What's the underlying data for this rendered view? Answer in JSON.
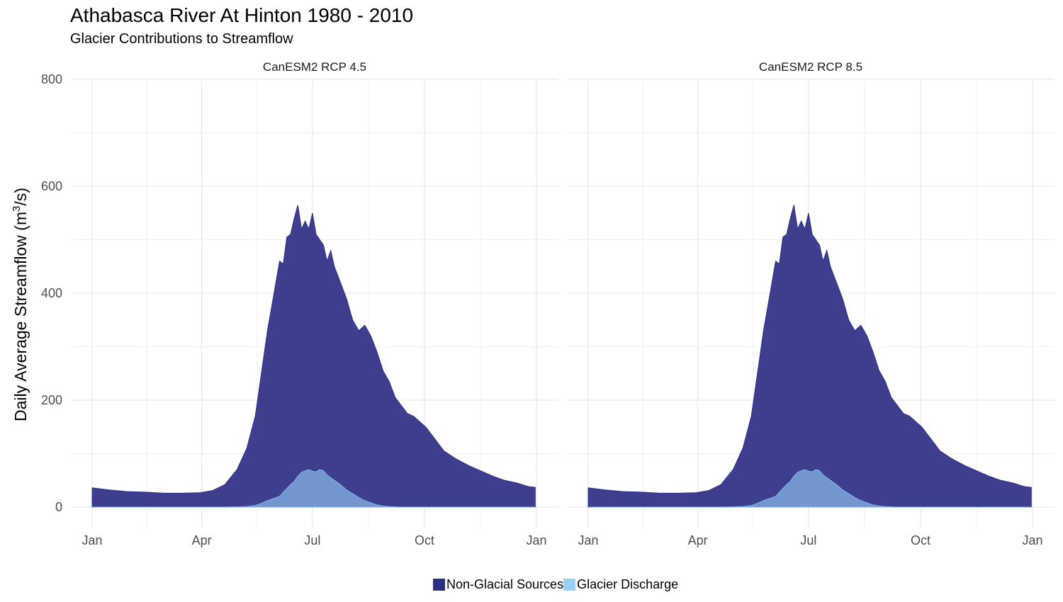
{
  "chart_data": {
    "type": "area",
    "title": "Athabasca River At Hinton 1980 - 2010",
    "subtitle": "Glacier Contributions to Streamflow",
    "ylabel": "Daily Average Streamflow (m³/s)",
    "ylabel_parts": {
      "main": "Daily Average Streamflow (m",
      "sup": "3",
      "tail": "/s)"
    },
    "xlabel": "",
    "ylim": [
      0,
      800
    ],
    "y_ticks": [
      0,
      200,
      400,
      600,
      800
    ],
    "y_tick_labels": [
      "0",
      "200",
      "400",
      "600",
      "800"
    ],
    "x_ticks": [
      "Jan",
      "Apr",
      "Jul",
      "Oct",
      "Jan"
    ],
    "x_unit": "day of year",
    "x_tick_days": [
      1,
      91,
      182,
      274,
      366
    ],
    "grid": true,
    "legend_position": "bottom",
    "stacked": true,
    "series_meta": [
      {
        "name": "Non-Glacial Sources",
        "color": "#2d2f84"
      },
      {
        "name": "Glacier Discharge",
        "color": "#97d1f8"
      }
    ],
    "panels": [
      {
        "label": "CanESM2 RCP 4.5"
      },
      {
        "label": "CanESM2 RCP 8.5"
      }
    ],
    "days": [
      1,
      15,
      30,
      45,
      60,
      75,
      90,
      100,
      110,
      120,
      128,
      135,
      140,
      145,
      150,
      155,
      158,
      161,
      164,
      167,
      170,
      173,
      176,
      179,
      182,
      185,
      188,
      191,
      194,
      197,
      200,
      205,
      210,
      215,
      220,
      225,
      230,
      235,
      240,
      245,
      250,
      255,
      260,
      265,
      270,
      275,
      280,
      285,
      290,
      300,
      310,
      320,
      330,
      340,
      350,
      360,
      365
    ],
    "total": [
      36,
      32,
      29,
      28,
      26,
      26,
      27,
      31,
      42,
      70,
      110,
      170,
      250,
      330,
      395,
      460,
      455,
      505,
      510,
      540,
      565,
      520,
      535,
      520,
      550,
      510,
      500,
      490,
      460,
      480,
      450,
      420,
      390,
      350,
      330,
      340,
      320,
      290,
      255,
      235,
      205,
      190,
      175,
      170,
      160,
      150,
      135,
      120,
      105,
      90,
      78,
      68,
      58,
      50,
      45,
      38,
      37
    ],
    "glacier": [
      0,
      0,
      0,
      0,
      0,
      0,
      0,
      0,
      0,
      0.5,
      1,
      3,
      7,
      12,
      16,
      20,
      28,
      35,
      42,
      48,
      58,
      65,
      68,
      70,
      67,
      66,
      70,
      68,
      60,
      55,
      50,
      42,
      32,
      25,
      18,
      12,
      8,
      4,
      2,
      1,
      0.5,
      0,
      0,
      0,
      0,
      0,
      0,
      0,
      0,
      0,
      0,
      0,
      0,
      0,
      0,
      0,
      0
    ]
  },
  "legend": {
    "items": [
      {
        "label": "Non-Glacial Sources",
        "color": "#2d2f84"
      },
      {
        "label": "Glacier Discharge",
        "color": "#97d1f8"
      }
    ]
  }
}
